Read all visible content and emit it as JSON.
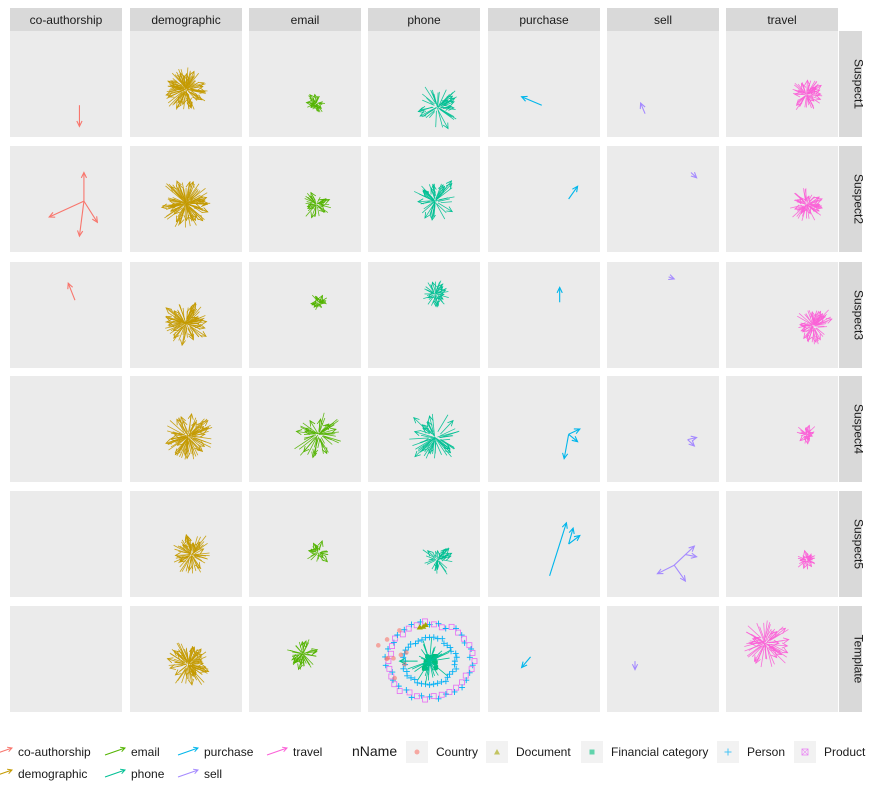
{
  "chart_data": {
    "type": "network-facets",
    "columns": [
      "co-authorship",
      "demographic",
      "email",
      "phone",
      "purchase",
      "sell",
      "travel"
    ],
    "rows": [
      "Suspect1",
      "Suspect2",
      "Suspect3",
      "Suspect4",
      "Suspect5",
      "Template"
    ],
    "edge_legend": {
      "items": [
        {
          "label": "co-authorship",
          "color": "#F8766D"
        },
        {
          "label": "demographic",
          "color": "#C49A00"
        },
        {
          "label": "email",
          "color": "#53B400"
        },
        {
          "label": "phone",
          "color": "#00C094"
        },
        {
          "label": "purchase",
          "color": "#00B6EB"
        },
        {
          "label": "sell",
          "color": "#A58AFF"
        },
        {
          "label": "travel",
          "color": "#FB61D7"
        }
      ]
    },
    "node_legend": {
      "title": "nName",
      "items": [
        {
          "label": "Country",
          "shape": "circle",
          "color": "#F8766D"
        },
        {
          "label": "Document",
          "shape": "triangle",
          "color": "#A3A500"
        },
        {
          "label": "Financial category",
          "shape": "square",
          "color": "#00BF7D"
        },
        {
          "label": "Person",
          "shape": "plus",
          "color": "#00B0F6"
        },
        {
          "label": "Product",
          "shape": "boxx",
          "color": "#E76BF3"
        }
      ]
    },
    "panels": [
      {
        "row": "Suspect1",
        "col": "co-authorship",
        "type": "arrows",
        "arrows": [
          [
            0.62,
            0.7,
            0.62,
            0.9
          ]
        ]
      },
      {
        "row": "Suspect1",
        "col": "demographic",
        "type": "blob",
        "cx": 0.5,
        "cy": 0.55,
        "r": 0.18,
        "n": 90
      },
      {
        "row": "Suspect1",
        "col": "email",
        "type": "blob",
        "cx": 0.6,
        "cy": 0.68,
        "r": 0.08,
        "n": 30
      },
      {
        "row": "Suspect1",
        "col": "phone",
        "type": "blob",
        "cx": 0.62,
        "cy": 0.72,
        "r": 0.18,
        "n": 40
      },
      {
        "row": "Suspect1",
        "col": "purchase",
        "type": "arrows",
        "arrows": [
          [
            0.48,
            0.7,
            0.3,
            0.62
          ]
        ]
      },
      {
        "row": "Suspect1",
        "col": "sell",
        "type": "arrows",
        "arrows": [
          [
            0.34,
            0.78,
            0.3,
            0.68
          ]
        ]
      },
      {
        "row": "Suspect1",
        "col": "travel",
        "type": "blob",
        "cx": 0.72,
        "cy": 0.6,
        "r": 0.14,
        "n": 50
      },
      {
        "row": "Suspect2",
        "col": "co-authorship",
        "type": "arrows",
        "arrows": [
          [
            0.66,
            0.52,
            0.66,
            0.25
          ],
          [
            0.66,
            0.52,
            0.35,
            0.67
          ],
          [
            0.66,
            0.52,
            0.78,
            0.72
          ],
          [
            0.66,
            0.52,
            0.62,
            0.85
          ]
        ]
      },
      {
        "row": "Suspect2",
        "col": "demographic",
        "type": "blob",
        "cx": 0.5,
        "cy": 0.54,
        "r": 0.2,
        "n": 100
      },
      {
        "row": "Suspect2",
        "col": "email",
        "type": "blob",
        "cx": 0.6,
        "cy": 0.55,
        "r": 0.12,
        "n": 35
      },
      {
        "row": "Suspect2",
        "col": "phone",
        "type": "blob",
        "cx": 0.6,
        "cy": 0.52,
        "r": 0.18,
        "n": 45
      },
      {
        "row": "Suspect2",
        "col": "purchase",
        "type": "arrows",
        "arrows": [
          [
            0.72,
            0.5,
            0.8,
            0.38
          ]
        ]
      },
      {
        "row": "Suspect2",
        "col": "sell",
        "type": "arrows",
        "arrows": [
          [
            0.75,
            0.25,
            0.8,
            0.3
          ]
        ]
      },
      {
        "row": "Suspect2",
        "col": "travel",
        "type": "blob",
        "cx": 0.72,
        "cy": 0.55,
        "r": 0.14,
        "n": 50
      },
      {
        "row": "Suspect3",
        "col": "co-authorship",
        "type": "arrows",
        "arrows": [
          [
            0.58,
            0.36,
            0.52,
            0.2
          ]
        ]
      },
      {
        "row": "Suspect3",
        "col": "demographic",
        "type": "blob",
        "cx": 0.5,
        "cy": 0.58,
        "r": 0.18,
        "n": 80
      },
      {
        "row": "Suspect3",
        "col": "email",
        "type": "blob",
        "cx": 0.62,
        "cy": 0.38,
        "r": 0.07,
        "n": 25
      },
      {
        "row": "Suspect3",
        "col": "phone",
        "type": "blob",
        "cx": 0.6,
        "cy": 0.3,
        "r": 0.12,
        "n": 35
      },
      {
        "row": "Suspect3",
        "col": "purchase",
        "type": "arrows",
        "arrows": [
          [
            0.64,
            0.38,
            0.64,
            0.24
          ]
        ]
      },
      {
        "row": "Suspect3",
        "col": "sell",
        "type": "arrows",
        "arrows": [
          [
            0.55,
            0.14,
            0.6,
            0.16
          ]
        ]
      },
      {
        "row": "Suspect3",
        "col": "travel",
        "type": "blob",
        "cx": 0.78,
        "cy": 0.6,
        "r": 0.16,
        "n": 55
      },
      {
        "row": "Suspect4",
        "col": "demographic",
        "type": "blob",
        "cx": 0.52,
        "cy": 0.57,
        "r": 0.2,
        "n": 80
      },
      {
        "row": "Suspect4",
        "col": "email",
        "type": "blob",
        "cx": 0.62,
        "cy": 0.55,
        "r": 0.2,
        "n": 45
      },
      {
        "row": "Suspect4",
        "col": "phone",
        "type": "blob",
        "cx": 0.6,
        "cy": 0.58,
        "r": 0.22,
        "n": 50
      },
      {
        "row": "Suspect4",
        "col": "purchase",
        "type": "arrows",
        "arrows": [
          [
            0.72,
            0.55,
            0.82,
            0.5
          ],
          [
            0.72,
            0.55,
            0.68,
            0.78
          ],
          [
            0.72,
            0.55,
            0.8,
            0.62
          ]
        ]
      },
      {
        "row": "Suspect4",
        "col": "sell",
        "type": "arrows",
        "arrows": [
          [
            0.72,
            0.6,
            0.78,
            0.66
          ],
          [
            0.72,
            0.6,
            0.8,
            0.58
          ]
        ]
      },
      {
        "row": "Suspect4",
        "col": "travel",
        "type": "blob",
        "cx": 0.72,
        "cy": 0.55,
        "r": 0.08,
        "n": 30
      },
      {
        "row": "Suspect5",
        "col": "demographic",
        "type": "blob",
        "cx": 0.55,
        "cy": 0.6,
        "r": 0.17,
        "n": 60
      },
      {
        "row": "Suspect5",
        "col": "email",
        "type": "blob",
        "cx": 0.62,
        "cy": 0.58,
        "r": 0.1,
        "n": 25
      },
      {
        "row": "Suspect5",
        "col": "phone",
        "type": "blob",
        "cx": 0.62,
        "cy": 0.65,
        "r": 0.13,
        "n": 35
      },
      {
        "row": "Suspect5",
        "col": "purchase",
        "type": "arrows",
        "arrows": [
          [
            0.55,
            0.8,
            0.7,
            0.3
          ],
          [
            0.72,
            0.5,
            0.76,
            0.35
          ],
          [
            0.72,
            0.5,
            0.82,
            0.42
          ]
        ]
      },
      {
        "row": "Suspect5",
        "col": "sell",
        "type": "arrows",
        "arrows": [
          [
            0.6,
            0.7,
            0.78,
            0.52
          ],
          [
            0.6,
            0.7,
            0.7,
            0.85
          ],
          [
            0.6,
            0.7,
            0.45,
            0.78
          ],
          [
            0.7,
            0.6,
            0.8,
            0.62
          ]
        ]
      },
      {
        "row": "Suspect5",
        "col": "travel",
        "type": "blob",
        "cx": 0.72,
        "cy": 0.65,
        "r": 0.08,
        "n": 30
      },
      {
        "row": "Template",
        "col": "demographic",
        "type": "blob",
        "cx": 0.52,
        "cy": 0.55,
        "r": 0.18,
        "n": 80
      },
      {
        "row": "Template",
        "col": "email",
        "type": "blob",
        "cx": 0.48,
        "cy": 0.45,
        "r": 0.13,
        "n": 40
      },
      {
        "row": "Template",
        "col": "phone",
        "type": "nodes-ring"
      },
      {
        "row": "Template",
        "col": "purchase",
        "type": "arrows",
        "arrows": [
          [
            0.38,
            0.48,
            0.3,
            0.58
          ]
        ]
      },
      {
        "row": "Template",
        "col": "sell",
        "type": "arrows",
        "arrows": [
          [
            0.25,
            0.52,
            0.25,
            0.6
          ]
        ]
      },
      {
        "row": "Template",
        "col": "travel",
        "type": "blob",
        "cx": 0.35,
        "cy": 0.35,
        "r": 0.2,
        "n": 55
      }
    ]
  }
}
